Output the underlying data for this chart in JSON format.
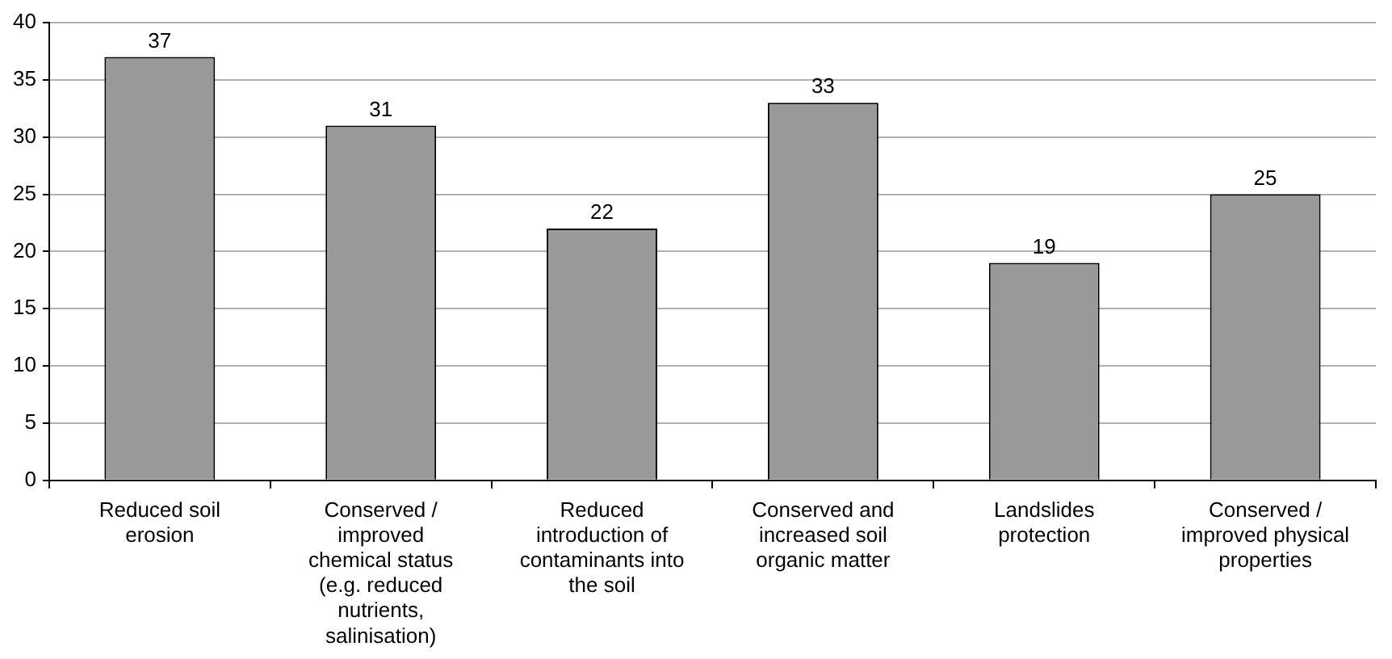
{
  "chart_data": {
    "type": "bar",
    "categories": [
      "Reduced soil erosion",
      "Conserved / improved chemical status (e.g. reduced nutrients, salinisation)",
      "Reduced introduction of contaminants into the soil",
      "Conserved and increased soil organic matter",
      "Landslides protection",
      "Conserved / improved physical properties"
    ],
    "values": [
      37,
      31,
      22,
      33,
      19,
      25
    ],
    "color": "#999999",
    "ylim": [
      0,
      40
    ],
    "yticks": [
      0,
      5,
      10,
      15,
      20,
      25,
      30,
      35,
      40
    ],
    "grid": "y",
    "data_labels": true,
    "legend": false
  }
}
